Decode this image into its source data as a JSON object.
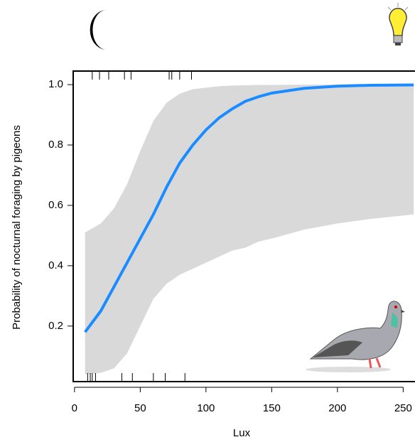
{
  "chart_data": {
    "type": "line",
    "y_label": "Probability of nocturnal foraging by pigeons",
    "x_label": "Lux",
    "x": [
      8,
      20,
      30,
      40,
      50,
      60,
      70,
      80,
      90,
      100,
      110,
      120,
      130,
      140,
      150,
      175,
      200,
      225,
      258
    ],
    "series": [
      {
        "color": "#1a8cff",
        "values": [
          0.18,
          0.25,
          0.33,
          0.41,
          0.49,
          0.57,
          0.66,
          0.74,
          0.8,
          0.85,
          0.89,
          0.92,
          0.945,
          0.96,
          0.972,
          0.988,
          0.995,
          0.998,
          0.999
        ]
      }
    ],
    "band": {
      "color": "#d9d9d9",
      "lower": [
        0.04,
        0.045,
        0.06,
        0.11,
        0.2,
        0.29,
        0.34,
        0.37,
        0.39,
        0.41,
        0.43,
        0.45,
        0.46,
        0.48,
        0.49,
        0.52,
        0.54,
        0.555,
        0.57
      ],
      "upper": [
        0.51,
        0.54,
        0.59,
        0.67,
        0.78,
        0.88,
        0.94,
        0.97,
        0.985,
        0.99,
        0.995,
        0.997,
        0.998,
        0.999,
        0.999,
        1,
        1,
        1,
        1
      ]
    },
    "rug_top": [
      13.5,
      19,
      26,
      38,
      43,
      72,
      74,
      80,
      89
    ],
    "rug_bottom": [
      10,
      12,
      13.5,
      16,
      36,
      44,
      60,
      69,
      84
    ],
    "xlim": [
      -1,
      259
    ],
    "ylim": [
      0.016,
      1.045
    ],
    "xticks": [
      0,
      50,
      100,
      150,
      200,
      250
    ],
    "yticks": [
      0.2,
      0.4,
      0.6,
      0.8,
      {
        "value": 1,
        "label": "1.0"
      }
    ]
  }
}
